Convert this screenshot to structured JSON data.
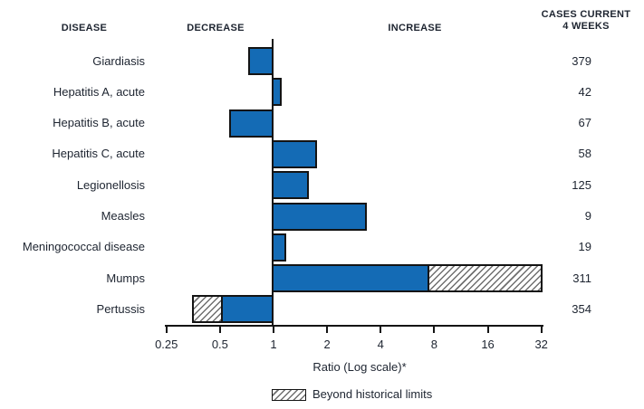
{
  "header": {
    "disease": "DISEASE",
    "decrease": "DECREASE",
    "increase": "INCREASE",
    "cases_line1": "CASES CURRENT",
    "cases_line2": "4 WEEKS"
  },
  "axis": {
    "label": "Ratio (Log scale)*",
    "tick_labels": [
      "0.25",
      "0.5",
      "1",
      "2",
      "4",
      "8",
      "16",
      "32"
    ],
    "tick_ratios": [
      0.25,
      0.5,
      1,
      2,
      4,
      8,
      16,
      32
    ]
  },
  "legend": {
    "beyond_label": "Beyond historical limits"
  },
  "colors": {
    "bar_fill": "#146bb5",
    "bar_border": "#141414",
    "text": "#1d2430"
  },
  "chart_data": {
    "type": "bar",
    "orientation": "horizontal",
    "scale": "log2",
    "xlabel": "Ratio (Log scale)*",
    "xlim": [
      0.25,
      32
    ],
    "baseline": 1,
    "grid": false,
    "legend_position": "bottom",
    "columns": {
      "left": "DISEASE",
      "right": "CASES CURRENT 4 WEEKS"
    },
    "rows": [
      {
        "disease": "Giardiasis",
        "cases": "379",
        "ratio": 0.72,
        "beyond_from": null
      },
      {
        "disease": "Hepatitis A, acute",
        "cases": "42",
        "ratio": 1.11,
        "beyond_from": null
      },
      {
        "disease": "Hepatitis B, acute",
        "cases": "67",
        "ratio": 0.56,
        "beyond_from": null
      },
      {
        "disease": "Hepatitis C, acute",
        "cases": "58",
        "ratio": 1.76,
        "beyond_from": null
      },
      {
        "disease": "Legionellosis",
        "cases": "125",
        "ratio": 1.58,
        "beyond_from": null
      },
      {
        "disease": "Measles",
        "cases": "9",
        "ratio": 3.35,
        "beyond_from": null
      },
      {
        "disease": "Meningococcal disease",
        "cases": "19",
        "ratio": 1.18,
        "beyond_from": null
      },
      {
        "disease": "Mumps",
        "cases": "311",
        "ratio": 32.4,
        "beyond_from": 7.5
      },
      {
        "disease": "Pertussis",
        "cases": "354",
        "ratio": 0.35,
        "beyond_from": 0.52
      }
    ]
  }
}
